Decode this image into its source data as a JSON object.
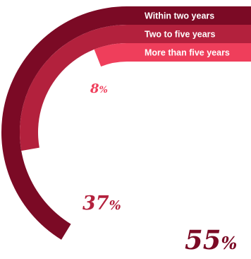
{
  "chart_data": {
    "type": "radial-bar",
    "series": [
      {
        "name": "Within two years",
        "value": 55,
        "unit": "%",
        "color": "#7b0a25"
      },
      {
        "name": "Two to five years",
        "value": 37,
        "unit": "%",
        "color": "#b3213d"
      },
      {
        "name": "More than five years",
        "value": 8,
        "unit": "%",
        "color": "#ef3e5b"
      }
    ],
    "labels": [
      "55%",
      "37%",
      "8%"
    ]
  }
}
